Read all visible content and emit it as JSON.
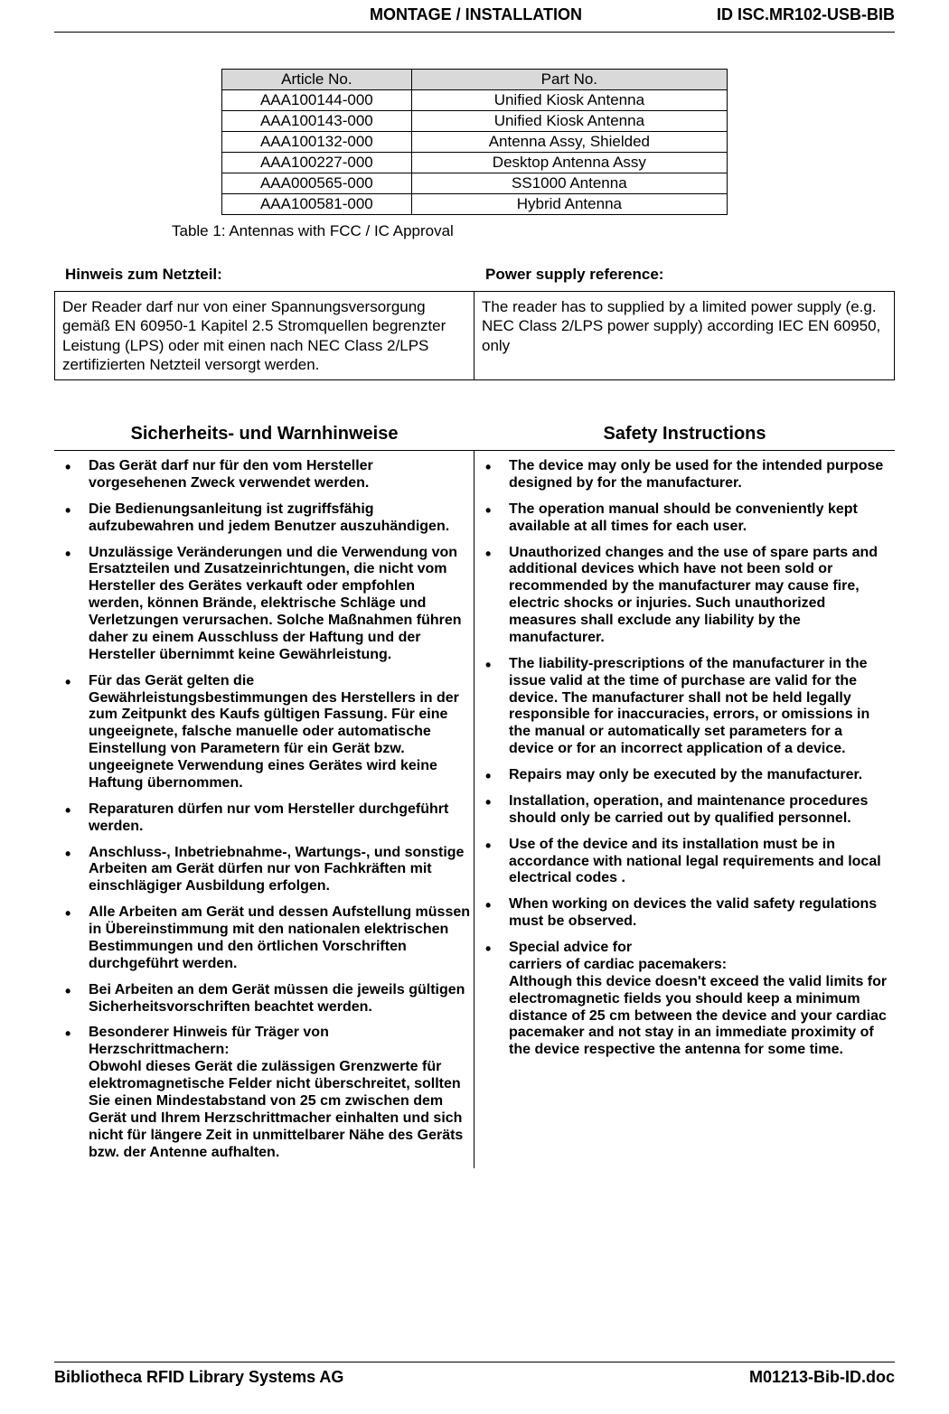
{
  "header": {
    "left": "MONTAGE / INSTALLATION",
    "right": "ID ISC.MR102-USB-BIB"
  },
  "antennaTable": {
    "headers": {
      "article": "Article No.",
      "part": "Part No."
    },
    "rows": [
      {
        "article": "AAA100144-000",
        "part": "Unified Kiosk Antenna"
      },
      {
        "article": "AAA100143-000",
        "part": "Unified Kiosk Antenna"
      },
      {
        "article": "AAA100132-000",
        "part": "Antenna Assy, Shielded"
      },
      {
        "article": "AAA100227-000",
        "part": "Desktop Antenna Assy"
      },
      {
        "article": "AAA000565-000",
        "part": "SS1000 Antenna"
      },
      {
        "article": "AAA100581-000",
        "part": "Hybrid Antenna"
      }
    ],
    "caption": "Table 1: Antennas with FCC / IC Approval"
  },
  "power": {
    "heading_de": "Hinweis zum Netzteil:",
    "heading_en": "Power supply reference:",
    "text_de": "Der Reader darf nur von einer Spannungsversorgung gemäß  EN 60950-1 Kapitel 2.5 Stromquellen begrenzter Leistung (LPS) oder mit einen nach NEC Class 2/LPS zertifizierten Netzteil versorgt werden.",
    "text_en": "The reader has to supplied by a limited power supply (e.g. NEC Class 2/LPS power supply) according IEC EN 60950, only"
  },
  "safety": {
    "heading_de": "Sicherheits- und Warnhinweise",
    "heading_en": "Safety Instructions",
    "items_de": [
      "Das Gerät darf nur für den vom Hersteller vorgesehenen Zweck verwendet werden.",
      "Die Bedienungsanleitung ist zugriffsfähig aufzubewahren und jedem Benutzer auszuhändigen.",
      "Unzulässige Veränderungen und die Verwendung von Ersatzteilen und Zusatzeinrichtungen, die nicht vom Hersteller des Gerätes verkauft oder empfohlen werden, können Brände, elektrische Schläge und Verletzungen verursachen. Solche Maßnahmen führen daher zu einem Ausschluss der Haftung und der Hersteller übernimmt keine Gewährleistung.",
      "Für das Gerät gelten die Gewährleistungsbestimmungen des Herstellers in der zum Zeitpunkt des Kaufs gültigen Fassung. Für eine ungeeignete, falsche manuelle oder automatische Einstellung von Parametern für ein Gerät bzw. ungeeignete Verwendung eines Gerätes wird keine Haftung übernommen.",
      "Reparaturen dürfen nur vom Hersteller durchgeführt werden.",
      "Anschluss-, Inbetriebnahme-, Wartungs-, und sonstige Arbeiten am Gerät dürfen nur von Fachkräften mit einschlägiger Ausbildung erfolgen.",
      "Alle Arbeiten am Gerät und dessen Aufstellung müssen in Übereinstimmung mit den nationalen elektrischen Bestimmungen und den örtlichen Vorschriften durchgeführt werden.",
      "Bei Arbeiten an dem Gerät müssen die jeweils gültigen Sicherheitsvorschriften beachtet werden.",
      "Besonderer Hinweis für Träger von Herzschrittmachern:\nObwohl dieses Gerät die zulässigen Grenzwerte für elektromagnetische Felder nicht überschreitet, sollten Sie einen Mindestabstand von 25 cm zwischen dem Gerät und Ihrem Herzschrittmacher einhalten und sich nicht für längere Zeit in unmittelbarer Nähe des Geräts bzw. der Antenne aufhalten."
    ],
    "items_en": [
      "The device may only be used for the intended purpose designed by for the manufacturer.",
      "The operation manual should be conveniently kept available at all times for each user.",
      "Unauthorized changes and the use of spare parts and additional devices which have not been sold or recommended by the manufacturer may cause fire, electric shocks or injuries. Such unauthorized measures shall  exclude any liability by the manufacturer.",
      "The liability-prescriptions of the manufacturer in the issue valid at the time of purchase are valid for the device. The manufacturer shall  not be held legally responsible for inaccuracies, errors, or omissions in the manual or automatically set parameters for a device or for an incorrect application of a device.",
      "Repairs may only be executed by the manufacturer.",
      "Installation, operation, and maintenance procedures should only be carried out by qualified personnel.",
      "Use of the device and its installation must be in accordance with national legal requirements and local electrical codes .",
      "When working on devices the valid safety regulations must be observed.",
      "Special advice for\ncarriers of cardiac pacemakers:\nAlthough this device doesn't exceed the valid limits for electromagnetic fields you should keep a minimum distance of 25 cm between the device and your cardiac pacemaker and not stay in an immediate proximity of the device respective the antenna for some time."
    ]
  },
  "footer": {
    "left": "Bibliotheca RFID Library Systems AG",
    "right": "M01213-Bib-ID.doc"
  }
}
